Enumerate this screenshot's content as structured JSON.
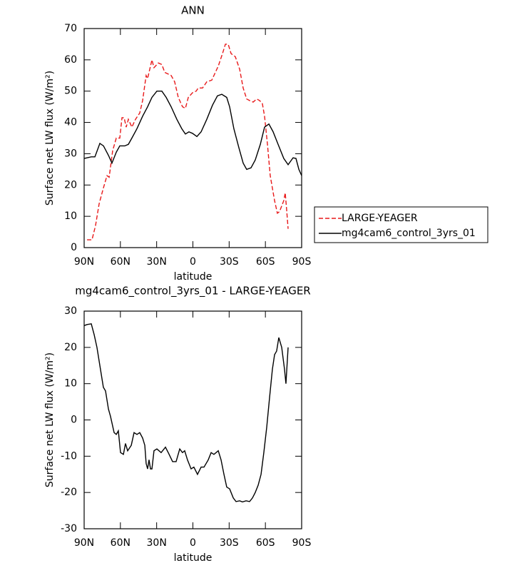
{
  "chart_data": [
    {
      "type": "line",
      "title": "ANN",
      "xlabel": "latitude",
      "ylabel": "Surface net LW flux (W/m²)",
      "xlim": [
        90,
        -90
      ],
      "xticks": [
        {
          "value": 90,
          "label": "90N"
        },
        {
          "value": 60,
          "label": "60N"
        },
        {
          "value": 30,
          "label": "30N"
        },
        0,
        {
          "value": -30,
          "label": "30S"
        },
        {
          "value": -60,
          "label": "60S"
        },
        {
          "value": -90,
          "label": "90S"
        }
      ],
      "ylim": [
        0,
        70
      ],
      "yticks": [
        0,
        10,
        20,
        30,
        40,
        50,
        60,
        70
      ],
      "legend": "right",
      "series": [
        {
          "name": "LARGE-YEAGER",
          "color": "#e8191a",
          "style": "dashed",
          "x": [
            87.6,
            83.5,
            80.6,
            77.6,
            74.1,
            71.1,
            69.3,
            66.4,
            63.4,
            60.5,
            58.7,
            56.9,
            55.2,
            53.4,
            50.5,
            47.5,
            44,
            41.6,
            38.7,
            37.5,
            35.7,
            33.9,
            32.2,
            28.6,
            25.7,
            23.3,
            18,
            15.1,
            12.1,
            8.6,
            6.2,
            3.8,
            0.3,
            -2.7,
            -4.4,
            -8,
            -11.5,
            -15.6,
            -18.6,
            -21,
            -24.5,
            -26.9,
            -29.2,
            -31.6,
            -35.1,
            -38.7,
            -41.6,
            -44.5,
            -46.9,
            -49.9,
            -52.8,
            -55.2,
            -57.5,
            -59.3,
            -61.7,
            -64,
            -67.6,
            -69.9,
            -71.7,
            -75.2,
            -76.4,
            -77.6,
            -78.8
          ],
          "values": [
            2.5,
            2.5,
            7,
            14,
            19,
            23,
            22.5,
            31,
            35,
            35,
            41.5,
            41.5,
            38.5,
            41,
            38.5,
            41,
            43,
            47,
            55,
            54,
            57,
            60,
            57.5,
            59,
            58.5,
            56,
            55,
            53,
            48,
            45,
            44.5,
            48,
            49.5,
            50,
            51,
            51,
            53,
            53.5,
            56,
            58,
            62,
            65,
            65,
            62,
            61,
            57,
            51,
            47.5,
            47,
            46.5,
            47.5,
            47,
            46,
            42,
            33,
            23,
            15,
            11,
            11.5,
            15,
            17.5,
            12,
            6
          ]
        },
        {
          "name": "mg4cam6_control_3yrs_01",
          "color": "#000000",
          "style": "solid",
          "x": [
            90,
            84.1,
            81.1,
            77,
            74,
            69.9,
            67,
            63.4,
            60.5,
            56.4,
            53.4,
            50.5,
            46.3,
            41.6,
            37.5,
            33.9,
            29.8,
            25.7,
            22.1,
            18,
            13.3,
            9.2,
            6.2,
            3.3,
            0.3,
            -3.3,
            -6.8,
            -11.5,
            -16.2,
            -20.3,
            -23.9,
            -28,
            -30.4,
            -33.9,
            -38,
            -41.6,
            -44.5,
            -48.1,
            -51.6,
            -55.8,
            -59.3,
            -62.9,
            -66.4,
            -70.5,
            -75.2,
            -78.8,
            -82.9,
            -85.3,
            -87.7,
            -90
          ],
          "values": [
            28.5,
            29,
            29,
            33.3,
            32.5,
            29.5,
            27,
            30.5,
            32.5,
            32.5,
            33,
            35,
            38,
            42,
            45,
            48,
            50,
            50,
            48,
            45,
            41,
            38,
            36.3,
            37,
            36.5,
            35.5,
            37,
            41,
            45.5,
            48.5,
            49,
            48,
            45,
            38,
            32,
            27,
            25,
            25.5,
            28,
            33,
            38.5,
            39.5,
            37,
            33,
            28.5,
            26.5,
            28.7,
            28.5,
            25,
            23
          ]
        }
      ]
    },
    {
      "type": "line",
      "title": "mg4cam6_control_3yrs_01 - LARGE-YEAGER",
      "xlabel": "latitude",
      "ylabel": "Surface net LW flux (W/m²)",
      "xlim": [
        90,
        -90
      ],
      "xticks": [
        {
          "value": 90,
          "label": "90N"
        },
        {
          "value": 60,
          "label": "60N"
        },
        {
          "value": 30,
          "label": "30N"
        },
        0,
        {
          "value": -30,
          "label": "30S"
        },
        {
          "value": -60,
          "label": "60S"
        },
        {
          "value": -90,
          "label": "90S"
        }
      ],
      "ylim": [
        -30,
        30
      ],
      "yticks": [
        -30,
        -20,
        -10,
        0,
        10,
        20,
        30
      ],
      "series": [
        {
          "color": "#000000",
          "style": "solid",
          "x": [
            90,
            87.6,
            84.1,
            81.7,
            79.4,
            77,
            74.1,
            72.3,
            69.9,
            68.2,
            65.2,
            63.4,
            61.7,
            59.9,
            57.5,
            55.8,
            54,
            51,
            48.7,
            46.3,
            44,
            41.6,
            39.8,
            38.7,
            37.5,
            36.3,
            35.1,
            33.9,
            32.2,
            29.8,
            26.3,
            22.7,
            20.4,
            16.8,
            13.9,
            10.9,
            8.6,
            6.8,
            4.5,
            1.5,
            -0.8,
            -3.8,
            -6.8,
            -9.2,
            -12.7,
            -15.1,
            -17.4,
            -21,
            -23.3,
            -25.7,
            -28,
            -30.4,
            -33.4,
            -35.7,
            -38.7,
            -41,
            -44,
            -46.9,
            -49.3,
            -51.6,
            -54,
            -56.4,
            -58.7,
            -61.1,
            -63.4,
            -65.8,
            -67.6,
            -69.3,
            -71.1,
            -73.5,
            -75.8,
            -77,
            -78.8
          ],
          "values": [
            26,
            26.3,
            26.5,
            23.5,
            20,
            15,
            9,
            8,
            3,
            1,
            -3.5,
            -4,
            -3,
            -9,
            -9.5,
            -6.5,
            -8.5,
            -7,
            -3.5,
            -4,
            -3.5,
            -5,
            -7,
            -12,
            -13.5,
            -11,
            -13.5,
            -13.5,
            -8.5,
            -8,
            -9,
            -7.5,
            -9,
            -11.5,
            -11.5,
            -8,
            -9,
            -8.5,
            -11,
            -13.5,
            -13,
            -15,
            -13,
            -13,
            -11,
            -9,
            -9.5,
            -8.5,
            -11,
            -15,
            -18.5,
            -19,
            -21.5,
            -22.5,
            -22.3,
            -22.6,
            -22.3,
            -22.5,
            -21.5,
            -20,
            -18,
            -15,
            -9,
            -2,
            6,
            14,
            18,
            19,
            22.7,
            20,
            14,
            10,
            20
          ]
        }
      ]
    }
  ]
}
